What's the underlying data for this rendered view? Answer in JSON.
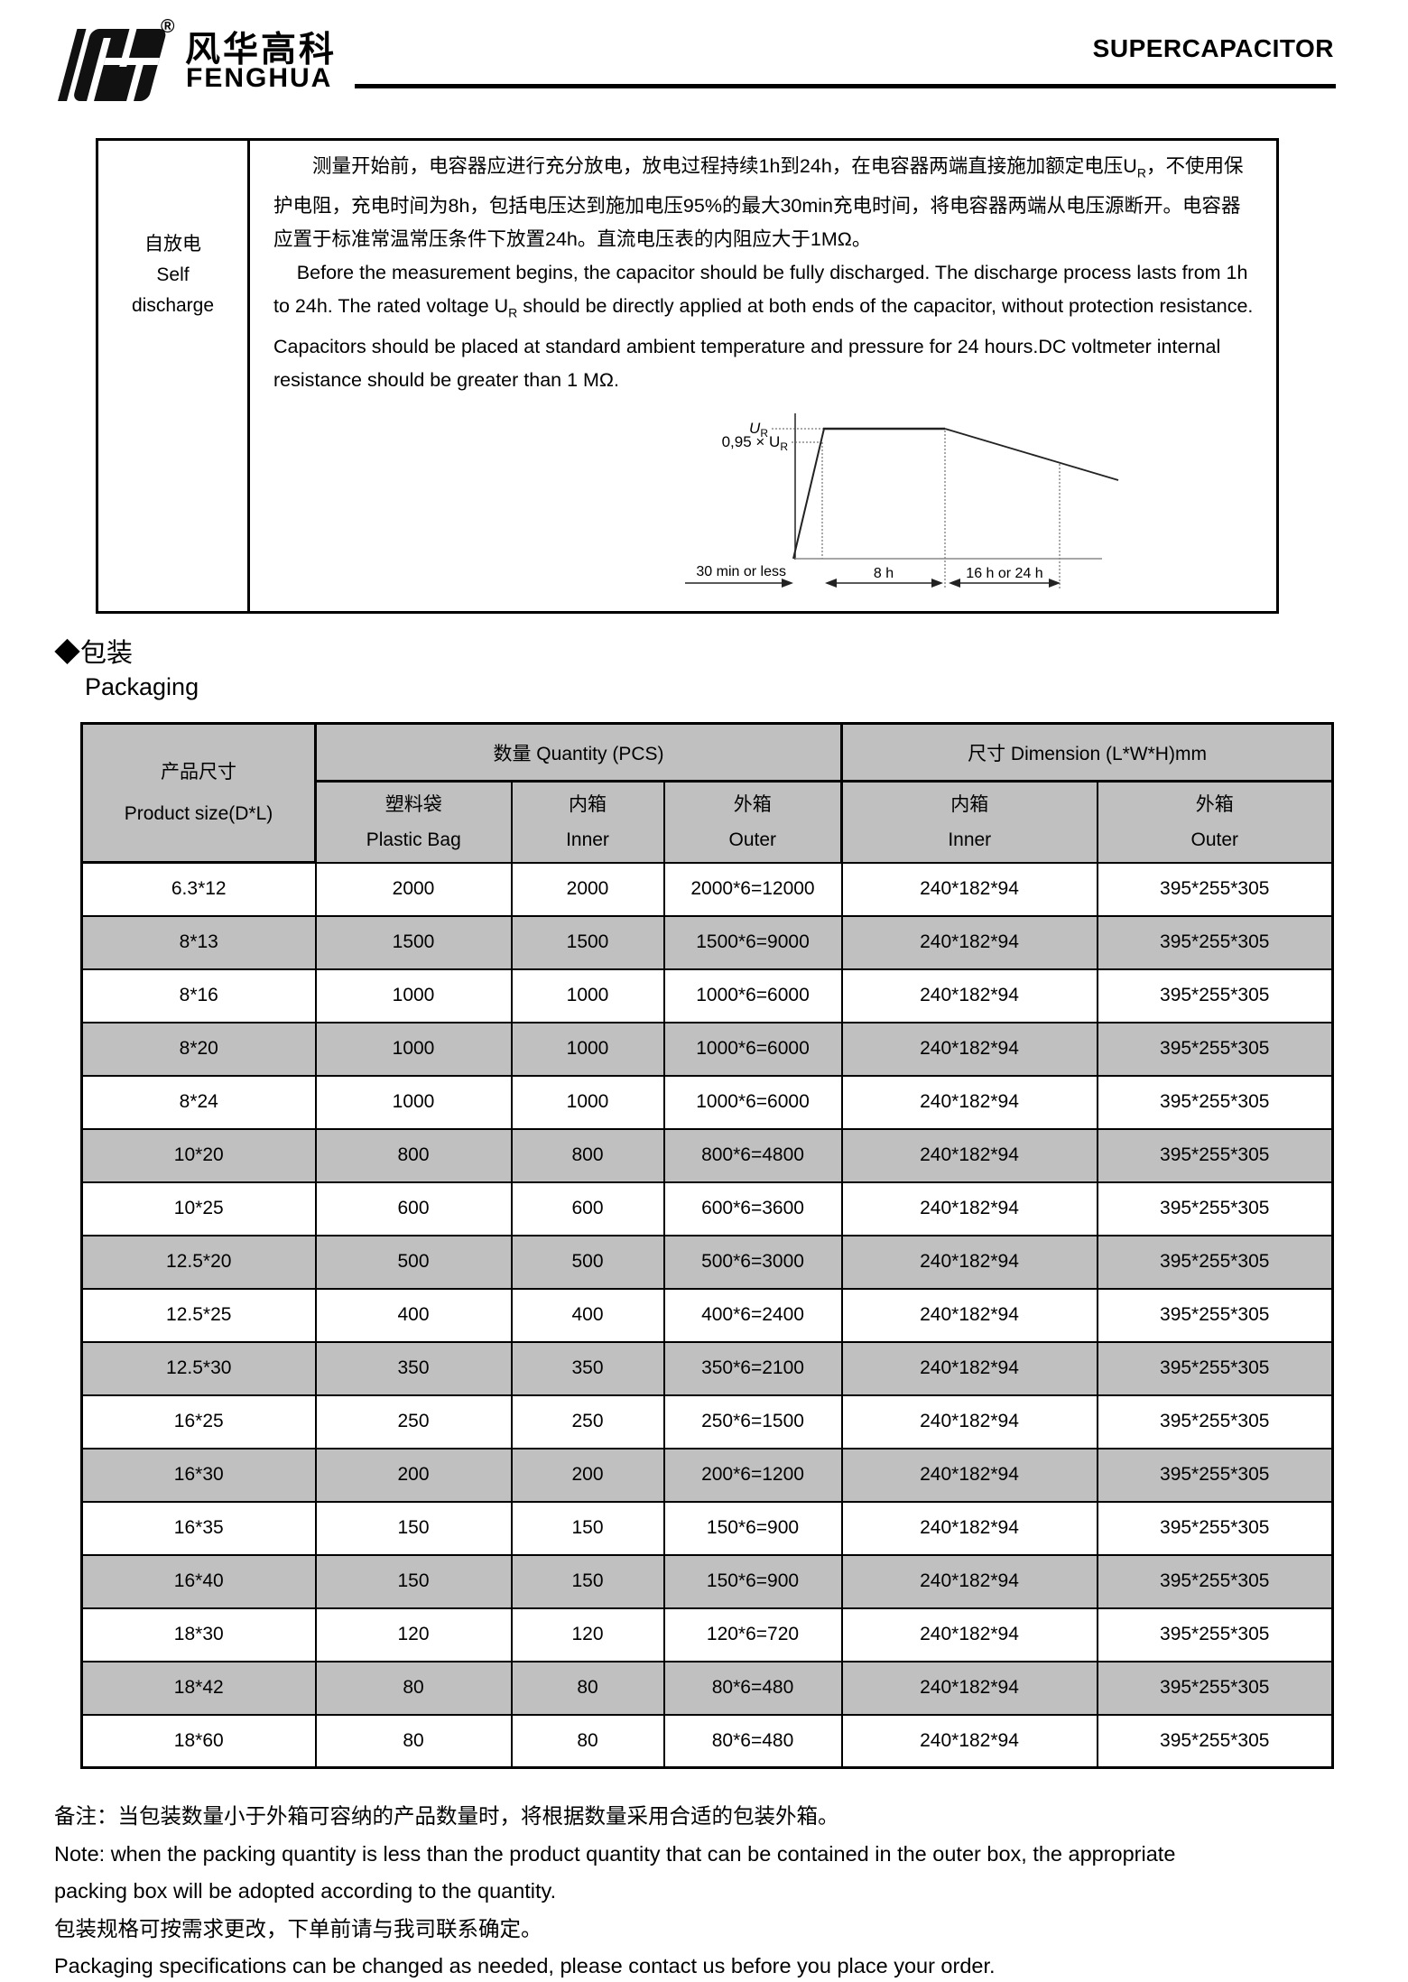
{
  "header": {
    "brand_cn": "风华高科",
    "brand_en": "FENGHUA",
    "registered": "®",
    "doc_title": "SUPERCAPACITOR"
  },
  "self_discharge": {
    "label_cn": "自放电",
    "label_en_line1": "Self",
    "label_en_line2": "discharge",
    "cn_part1": "测量开始前，电容器应进行充分放电，放电过程持续1h到24h，在电容器两端直接施加额定电压U",
    "cn_sub": "R",
    "cn_part2": "，不使用保护电阻，充电时间为8h，包括电压达到施加电压95%的最大30min充电时间，将电容器两端从电压源断开。电容器应置于标准常温常压条件下放置24h。直流电压表的内阻应大于1MΩ。",
    "en_part1": "Before the measurement begins, the capacitor should be fully discharged. The discharge process lasts from 1h to 24h. The rated voltage U",
    "en_sub": "R",
    "en_part2": " should be directly applied at both ends of the capacitor, without protection resistance. Capacitors should be placed at standard ambient temperature and pressure for 24 hours.DC voltmeter internal resistance should be greater than 1 MΩ.",
    "diagram": {
      "y_label_1_main": "U",
      "y_label_1_sub": "R",
      "y_label_2_main": "0,95 × U",
      "y_label_2_sub": "R",
      "x_label_1": "30 min or less",
      "x_label_2": "8 h",
      "x_label_3": "16 h or 24 h"
    }
  },
  "packaging": {
    "heading_cn": "◆包装",
    "heading_en": "Packaging",
    "table": {
      "product_col_cn": "产品尺寸",
      "product_col_en": "Product size(D*L)",
      "quantity_group": "数量 Quantity (PCS)",
      "dimension_group": "尺寸 Dimension (L*W*H)mm",
      "sub_headers": [
        {
          "cn": "塑料袋",
          "en": "Plastic Bag"
        },
        {
          "cn": "内箱",
          "en": "Inner"
        },
        {
          "cn": "外箱",
          "en": "Outer"
        },
        {
          "cn": "内箱",
          "en": "Inner"
        },
        {
          "cn": "外箱",
          "en": "Outer"
        }
      ],
      "rows": [
        [
          "6.3*12",
          "2000",
          "2000",
          "2000*6=12000",
          "240*182*94",
          "395*255*305"
        ],
        [
          "8*13",
          "1500",
          "1500",
          "1500*6=9000",
          "240*182*94",
          "395*255*305"
        ],
        [
          "8*16",
          "1000",
          "1000",
          "1000*6=6000",
          "240*182*94",
          "395*255*305"
        ],
        [
          "8*20",
          "1000",
          "1000",
          "1000*6=6000",
          "240*182*94",
          "395*255*305"
        ],
        [
          "8*24",
          "1000",
          "1000",
          "1000*6=6000",
          "240*182*94",
          "395*255*305"
        ],
        [
          "10*20",
          "800",
          "800",
          "800*6=4800",
          "240*182*94",
          "395*255*305"
        ],
        [
          "10*25",
          "600",
          "600",
          "600*6=3600",
          "240*182*94",
          "395*255*305"
        ],
        [
          "12.5*20",
          "500",
          "500",
          "500*6=3000",
          "240*182*94",
          "395*255*305"
        ],
        [
          "12.5*25",
          "400",
          "400",
          "400*6=2400",
          "240*182*94",
          "395*255*305"
        ],
        [
          "12.5*30",
          "350",
          "350",
          "350*6=2100",
          "240*182*94",
          "395*255*305"
        ],
        [
          "16*25",
          "250",
          "250",
          "250*6=1500",
          "240*182*94",
          "395*255*305"
        ],
        [
          "16*30",
          "200",
          "200",
          "200*6=1200",
          "240*182*94",
          "395*255*305"
        ],
        [
          "16*35",
          "150",
          "150",
          "150*6=900",
          "240*182*94",
          "395*255*305"
        ],
        [
          "16*40",
          "150",
          "150",
          "150*6=900",
          "240*182*94",
          "395*255*305"
        ],
        [
          "18*30",
          "120",
          "120",
          "120*6=720",
          "240*182*94",
          "395*255*305"
        ],
        [
          "18*42",
          "80",
          "80",
          "80*6=480",
          "240*182*94",
          "395*255*305"
        ],
        [
          "18*60",
          "80",
          "80",
          "80*6=480",
          "240*182*94",
          "395*255*305"
        ]
      ]
    }
  },
  "notes": {
    "line1_cn": "备注：当包装数量小于外箱可容纳的产品数量时，将根据数量采用合适的包装外箱。",
    "line2_en": "Note: when the packing quantity is less than the product quantity that can be contained in the outer box, the appropriate",
    "line3_en": "packing box will be adopted according to the quantity.",
    "line4_cn": "包装规格可按需求更改，下单前请与我司联系确定。",
    "line5_en": "Packaging specifications can be changed as needed, please contact us before you place your order."
  },
  "colors": {
    "table_gray": "#c0c0c0",
    "ink": "#000000"
  }
}
